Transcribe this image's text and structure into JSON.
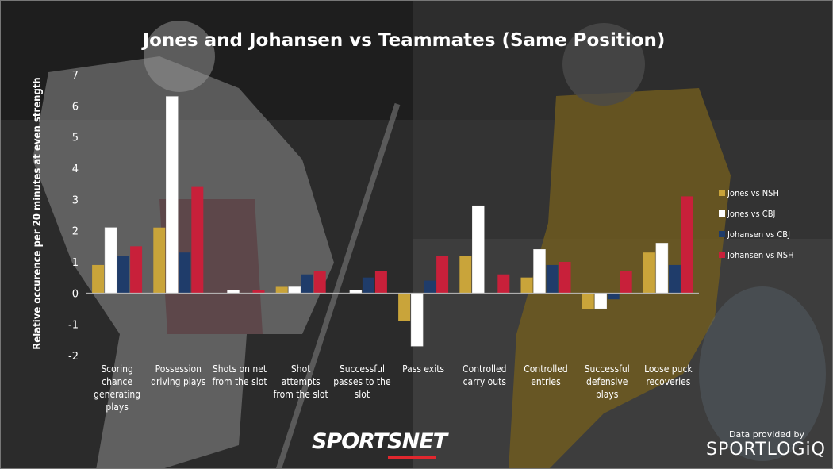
{
  "chart_data": {
    "type": "bar",
    "title": "Jones and Johansen vs Teammates (Same Position)",
    "ylabel": "Relative occurence per 20 minutes at even strength",
    "xlabel": "",
    "ylim": [
      -2,
      7
    ],
    "yticks": [
      -2,
      -1,
      0,
      1,
      2,
      3,
      4,
      5,
      6,
      7
    ],
    "grid": false,
    "legend_position": "right",
    "categories": [
      [
        "Scoring",
        "chance",
        "generating",
        "plays"
      ],
      [
        "Possession",
        "driving plays"
      ],
      [
        "Shots on net",
        "from the slot"
      ],
      [
        "Shot",
        "attempts",
        "from the slot"
      ],
      [
        "Successful",
        "passes to the",
        "slot"
      ],
      [
        "Pass exits"
      ],
      [
        "Controlled",
        "carry outs"
      ],
      [
        "Controlled",
        "entries"
      ],
      [
        "Successful",
        "defensive",
        "plays"
      ],
      [
        "Loose puck",
        "recoveries"
      ]
    ],
    "series": [
      {
        "name": "Jones vs NSH",
        "color": "#c9a43a",
        "values": [
          0.9,
          2.1,
          0.0,
          0.2,
          0.0,
          -0.9,
          1.2,
          0.5,
          -0.5,
          1.3
        ]
      },
      {
        "name": "Jones vs CBJ",
        "color": "#ffffff",
        "values": [
          2.1,
          6.3,
          0.1,
          0.2,
          0.1,
          -1.7,
          2.8,
          1.4,
          -0.5,
          1.6
        ]
      },
      {
        "name": "Johansen vs CBJ",
        "color": "#1f3c6a",
        "values": [
          1.2,
          1.3,
          0.0,
          0.6,
          0.5,
          0.4,
          0.0,
          0.9,
          -0.2,
          0.9
        ]
      },
      {
        "name": "Johansen vs NSH",
        "color": "#c8203a",
        "values": [
          1.5,
          3.4,
          0.1,
          0.7,
          0.7,
          1.2,
          0.6,
          1.0,
          0.7,
          3.1
        ]
      }
    ]
  },
  "footer": {
    "brand": "SPORTSNET",
    "credit_label": "Data provided by",
    "credit_brand": "SPORTLOGiQ"
  }
}
